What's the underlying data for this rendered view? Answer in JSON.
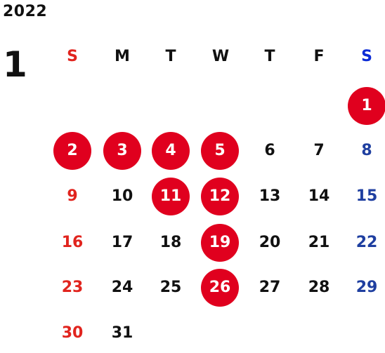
{
  "calendar": {
    "year": "2022",
    "month": "1",
    "weekdays": [
      "S",
      "M",
      "T",
      "W",
      "T",
      "F",
      "S"
    ],
    "days": [
      {
        "label": "1",
        "col": 6,
        "row": 0,
        "holiday": true
      },
      {
        "label": "2",
        "col": 0,
        "row": 1,
        "holiday": true
      },
      {
        "label": "3",
        "col": 1,
        "row": 1,
        "holiday": true
      },
      {
        "label": "4",
        "col": 2,
        "row": 1,
        "holiday": true
      },
      {
        "label": "5",
        "col": 3,
        "row": 1,
        "holiday": true
      },
      {
        "label": "6",
        "col": 4,
        "row": 1,
        "holiday": false
      },
      {
        "label": "7",
        "col": 5,
        "row": 1,
        "holiday": false
      },
      {
        "label": "8",
        "col": 6,
        "row": 1,
        "holiday": false
      },
      {
        "label": "9",
        "col": 0,
        "row": 2,
        "holiday": false
      },
      {
        "label": "10",
        "col": 1,
        "row": 2,
        "holiday": false
      },
      {
        "label": "11",
        "col": 2,
        "row": 2,
        "holiday": true
      },
      {
        "label": "12",
        "col": 3,
        "row": 2,
        "holiday": true
      },
      {
        "label": "13",
        "col": 4,
        "row": 2,
        "holiday": false
      },
      {
        "label": "14",
        "col": 5,
        "row": 2,
        "holiday": false
      },
      {
        "label": "15",
        "col": 6,
        "row": 2,
        "holiday": false
      },
      {
        "label": "16",
        "col": 0,
        "row": 3,
        "holiday": false
      },
      {
        "label": "17",
        "col": 1,
        "row": 3,
        "holiday": false
      },
      {
        "label": "18",
        "col": 2,
        "row": 3,
        "holiday": false
      },
      {
        "label": "19",
        "col": 3,
        "row": 3,
        "holiday": true
      },
      {
        "label": "20",
        "col": 4,
        "row": 3,
        "holiday": false
      },
      {
        "label": "21",
        "col": 5,
        "row": 3,
        "holiday": false
      },
      {
        "label": "22",
        "col": 6,
        "row": 3,
        "holiday": false
      },
      {
        "label": "23",
        "col": 0,
        "row": 4,
        "holiday": false
      },
      {
        "label": "24",
        "col": 1,
        "row": 4,
        "holiday": false
      },
      {
        "label": "25",
        "col": 2,
        "row": 4,
        "holiday": false
      },
      {
        "label": "26",
        "col": 3,
        "row": 4,
        "holiday": true
      },
      {
        "label": "27",
        "col": 4,
        "row": 4,
        "holiday": false
      },
      {
        "label": "28",
        "col": 5,
        "row": 4,
        "holiday": false
      },
      {
        "label": "29",
        "col": 6,
        "row": 4,
        "holiday": false
      },
      {
        "label": "30",
        "col": 0,
        "row": 5,
        "holiday": false
      },
      {
        "label": "31",
        "col": 1,
        "row": 5,
        "holiday": false
      }
    ],
    "colors": {
      "holiday_fill": "#e0001e",
      "sunday_text": "#e1241e",
      "saturday_text": "#1f3fa0",
      "saturday_header": "#0b2bd6",
      "weekday_text": "#111111"
    }
  }
}
